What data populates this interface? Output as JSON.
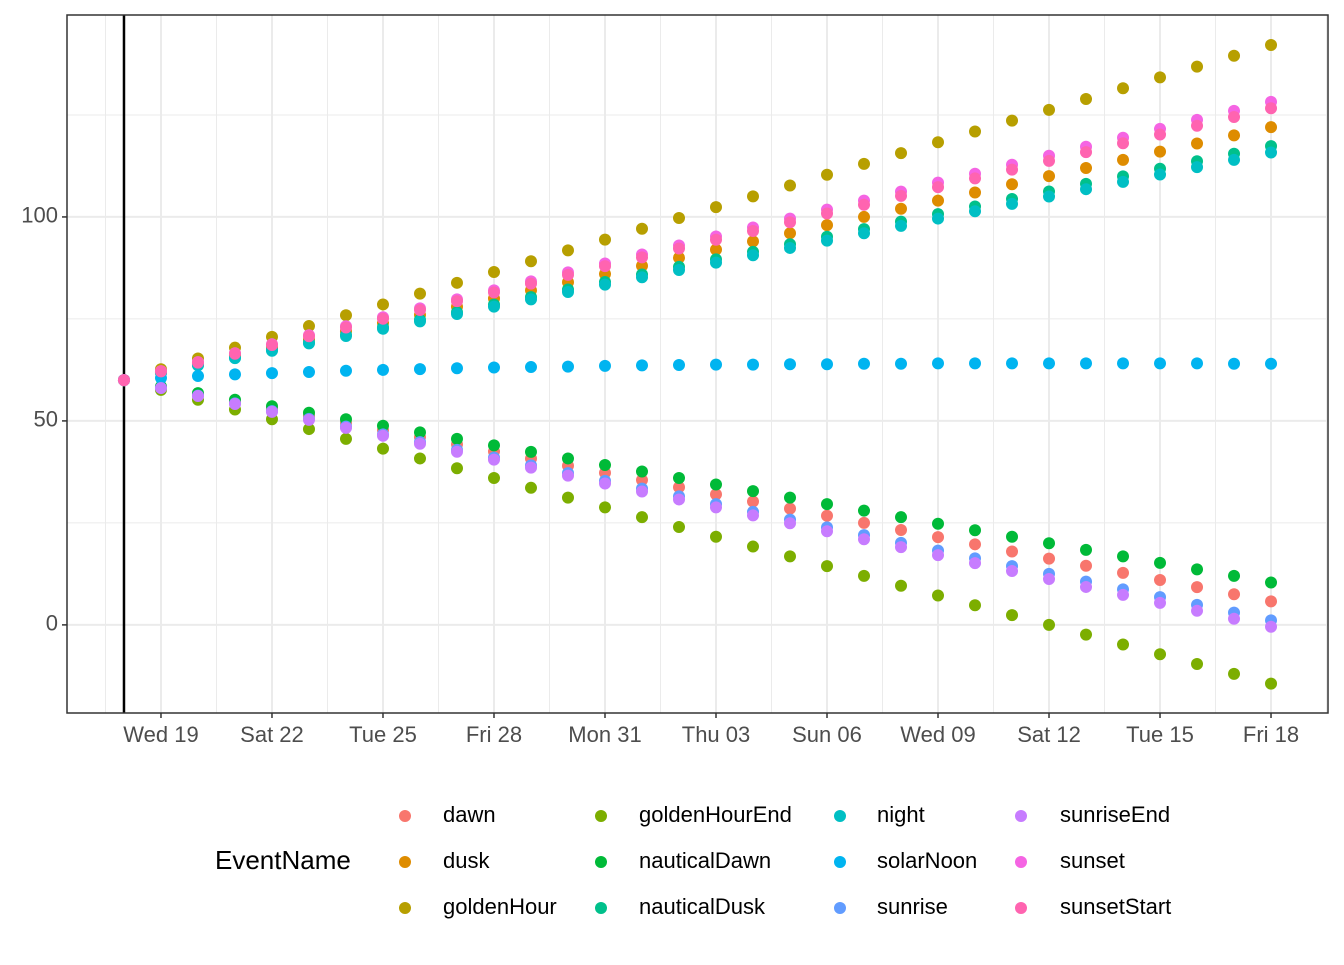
{
  "chart_data": {
    "type": "scatter",
    "x": [
      0,
      1,
      2,
      3,
      4,
      5,
      6,
      7,
      8,
      9,
      10,
      11,
      12,
      13,
      14,
      15,
      16,
      17,
      18,
      19,
      20,
      21,
      22,
      23,
      24,
      25,
      26,
      27,
      28,
      29,
      30,
      31
    ],
    "xlim": [
      -1.54,
      32.54
    ],
    "xticks": [
      {
        "value": 1,
        "label": "Wed 19"
      },
      {
        "value": 4,
        "label": "Sat 22"
      },
      {
        "value": 7,
        "label": "Tue 25"
      },
      {
        "value": 10,
        "label": "Fri 28"
      },
      {
        "value": 13,
        "label": "Mon 31"
      },
      {
        "value": 16,
        "label": "Thu 03"
      },
      {
        "value": 19,
        "label": "Sun 06"
      },
      {
        "value": 22,
        "label": "Wed 09"
      },
      {
        "value": 25,
        "label": "Sat 12"
      },
      {
        "value": 28,
        "label": "Tue 15"
      },
      {
        "value": 31,
        "label": "Fri 18"
      }
    ],
    "ylim": [
      -21.6,
      149.5
    ],
    "yticks": [
      0,
      50,
      100
    ],
    "grid": true,
    "vline": 0,
    "legend_title": "EventName",
    "series": [
      {
        "name": "dawn",
        "color": "#F8766D",
        "values": [
          60,
          58.25,
          56.5,
          54.75,
          53,
          51.25,
          49.5,
          47.75,
          46,
          44.25,
          42.5,
          40.75,
          39,
          37.25,
          35.5,
          33.75,
          32,
          30.25,
          28.5,
          26.75,
          25,
          23.25,
          21.5,
          19.75,
          18,
          16.25,
          14.5,
          12.75,
          11,
          9.25,
          7.5,
          5.75
        ]
      },
      {
        "name": "dusk",
        "color": "#DE8C00",
        "values": [
          60,
          62,
          64,
          66,
          68,
          70,
          72,
          74,
          76,
          78,
          80,
          82,
          84,
          86,
          88,
          90,
          92,
          94,
          96,
          98,
          100,
          102,
          104,
          106,
          108,
          110,
          112,
          114,
          116,
          118,
          120,
          122
        ]
      },
      {
        "name": "goldenHour",
        "color": "#B79F00",
        "values": [
          60,
          62.65,
          65.3,
          67.95,
          70.6,
          73.25,
          75.9,
          78.55,
          81.2,
          83.85,
          86.5,
          89.15,
          91.8,
          94.45,
          97.1,
          99.75,
          102.4,
          105.05,
          107.7,
          110.35,
          113,
          115.65,
          118.3,
          120.95,
          123.6,
          126.25,
          128.9,
          131.55,
          134.2,
          136.85,
          139.5,
          142.15
        ]
      },
      {
        "name": "goldenHourEnd",
        "color": "#7CAE00",
        "values": [
          60,
          57.6,
          55.2,
          52.8,
          50.4,
          48,
          45.6,
          43.2,
          40.8,
          38.4,
          36,
          33.6,
          31.2,
          28.8,
          26.4,
          24,
          21.6,
          19.2,
          16.8,
          14.4,
          12,
          9.6,
          7.2,
          4.8,
          2.4,
          0,
          -2.4,
          -4.8,
          -7.2,
          -9.6,
          -12,
          -14.4
        ]
      },
      {
        "name": "nauticalDawn",
        "color": "#00BA38",
        "values": [
          60,
          58.4,
          56.8,
          55.2,
          53.6,
          52,
          50.4,
          48.8,
          47.2,
          45.6,
          44,
          42.4,
          40.8,
          39.2,
          37.6,
          36,
          34.4,
          32.8,
          31.2,
          29.6,
          28,
          26.4,
          24.8,
          23.2,
          21.6,
          20,
          18.4,
          16.8,
          15.2,
          13.6,
          12,
          10.4
        ]
      },
      {
        "name": "nauticalDusk",
        "color": "#00C08B",
        "values": [
          60,
          61.85,
          63.7,
          65.55,
          67.4,
          69.25,
          71.1,
          72.95,
          74.8,
          76.65,
          78.5,
          80.35,
          82.2,
          84.05,
          85.9,
          87.75,
          89.6,
          91.45,
          93.3,
          95.15,
          97,
          98.85,
          100.7,
          102.55,
          104.4,
          106.25,
          108.1,
          109.95,
          111.8,
          113.65,
          115.5,
          117.35
        ]
      },
      {
        "name": "night",
        "color": "#00BFC4",
        "values": [
          60,
          61.8,
          63.6,
          65.4,
          67.2,
          69,
          70.8,
          72.6,
          74.4,
          76.2,
          78,
          79.8,
          81.6,
          83.4,
          85.2,
          87,
          88.8,
          90.6,
          92.4,
          94.2,
          96,
          97.8,
          99.6,
          101.4,
          103.2,
          105,
          106.8,
          108.6,
          110.4,
          112.2,
          114,
          115.8
        ]
      },
      {
        "name": "solarNoon",
        "color": "#00B4F0",
        "values": [
          60,
          60.5,
          61,
          61.4,
          61.7,
          62,
          62.3,
          62.5,
          62.7,
          62.9,
          63.1,
          63.2,
          63.3,
          63.5,
          63.6,
          63.7,
          63.8,
          63.8,
          63.9,
          63.9,
          64,
          64,
          64.1,
          64.1,
          64.1,
          64.1,
          64.1,
          64.1,
          64.1,
          64.1,
          64,
          64
        ]
      },
      {
        "name": "sunrise",
        "color": "#619CFF",
        "values": [
          60,
          58.1,
          56.2,
          54.3,
          52.4,
          50.5,
          48.6,
          46.7,
          44.8,
          42.9,
          41,
          39.1,
          37.2,
          35.3,
          33.4,
          31.5,
          29.6,
          27.7,
          25.8,
          23.9,
          22,
          20.1,
          18.2,
          16.3,
          14.4,
          12.5,
          10.6,
          8.7,
          6.8,
          4.9,
          3,
          1.1
        ]
      },
      {
        "name": "sunriseEnd",
        "color": "#C77CFF",
        "values": [
          60,
          58.05,
          56.1,
          54.15,
          52.2,
          50.25,
          48.3,
          46.35,
          44.4,
          42.45,
          40.5,
          38.55,
          36.6,
          34.65,
          32.7,
          30.75,
          28.8,
          26.85,
          24.9,
          22.95,
          21,
          19.05,
          17.1,
          15.15,
          13.2,
          11.25,
          9.3,
          7.35,
          5.4,
          3.45,
          1.5,
          -0.45
        ]
      },
      {
        "name": "sunset",
        "color": "#F564E3",
        "values": [
          60,
          62.2,
          64.4,
          66.6,
          68.8,
          71,
          73.2,
          75.4,
          77.6,
          79.8,
          82,
          84.2,
          86.4,
          88.6,
          90.8,
          93,
          95.2,
          97.4,
          99.6,
          101.8,
          104,
          106.2,
          108.4,
          110.6,
          112.8,
          115,
          117.2,
          119.4,
          121.6,
          123.8,
          126,
          128.2
        ]
      },
      {
        "name": "sunsetStart",
        "color": "#FF64B0",
        "values": [
          60,
          62.15,
          64.3,
          66.45,
          68.6,
          70.75,
          72.9,
          75.05,
          77.2,
          79.35,
          81.5,
          83.65,
          85.8,
          87.95,
          90.1,
          92.25,
          94.4,
          96.55,
          98.7,
          100.85,
          103,
          105.15,
          107.3,
          109.45,
          111.6,
          113.75,
          115.9,
          118.05,
          120.2,
          122.35,
          124.5,
          126.65
        ]
      }
    ]
  }
}
